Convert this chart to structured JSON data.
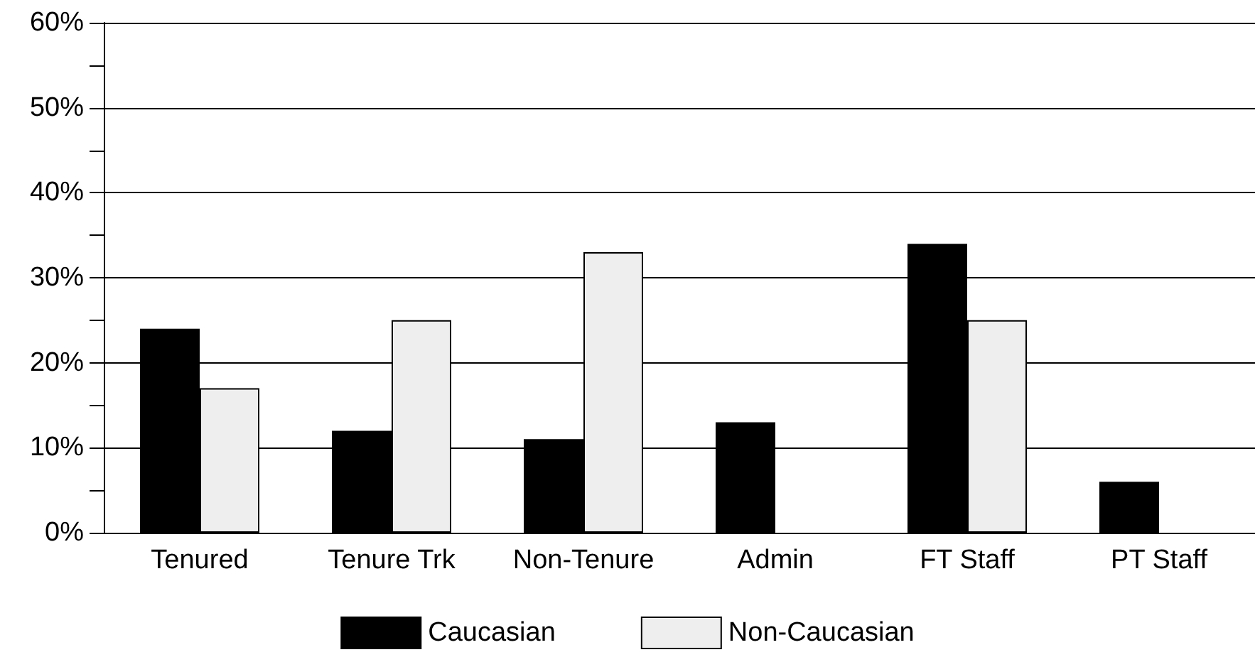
{
  "chart_data": {
    "type": "bar",
    "categories": [
      "Tenured",
      "Tenure Trk",
      "Non-Tenure",
      "Admin",
      "FT Staff",
      "PT Staff"
    ],
    "series": [
      {
        "name": "Caucasian",
        "color": "#000000",
        "values": [
          24,
          12,
          11,
          13,
          34,
          6
        ]
      },
      {
        "name": "Non-Caucasian",
        "color": "#eeeeee",
        "values": [
          17,
          25,
          33,
          null,
          25,
          null
        ]
      }
    ],
    "ylim": [
      0,
      60
    ],
    "yticks": [
      {
        "value": 0,
        "label": "0%"
      },
      {
        "value": 5,
        "label": null
      },
      {
        "value": 10,
        "label": "10%"
      },
      {
        "value": 15,
        "label": null
      },
      {
        "value": 20,
        "label": "20%"
      },
      {
        "value": 25,
        "label": null
      },
      {
        "value": 30,
        "label": "30%"
      },
      {
        "value": 35,
        "label": null
      },
      {
        "value": 40,
        "label": "40%"
      },
      {
        "value": 45,
        "label": null
      },
      {
        "value": 50,
        "label": "50%"
      },
      {
        "value": 55,
        "label": null
      },
      {
        "value": 60,
        "label": "60%"
      }
    ],
    "grid": "y",
    "legend": "bottom"
  }
}
